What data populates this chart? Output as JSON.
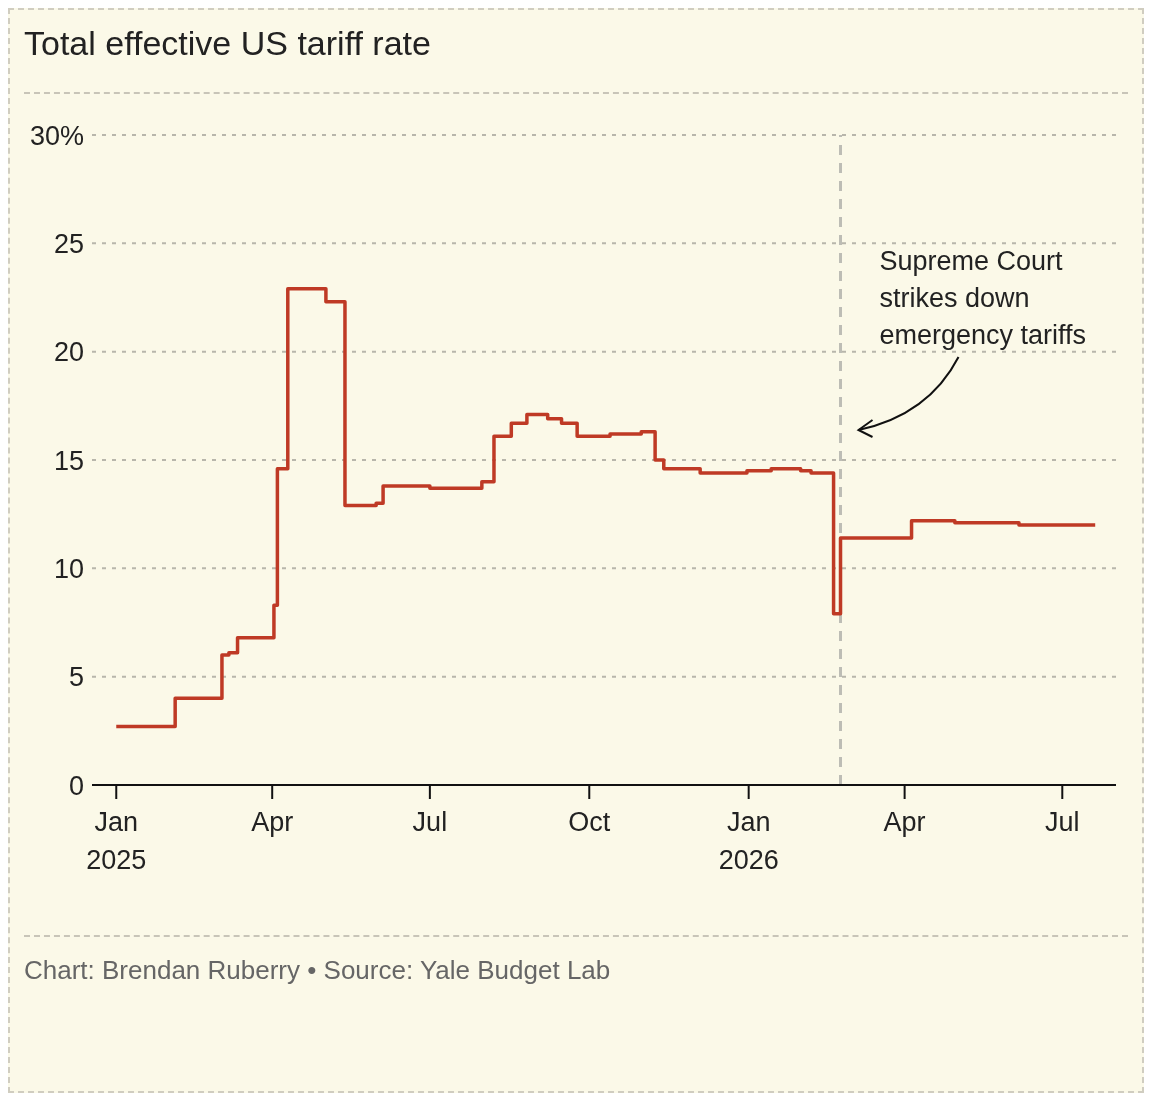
{
  "chart_data": {
    "type": "step",
    "title": "Total effective US tariff rate",
    "x": [
      "2025-01-01",
      "2025-02-04",
      "2025-03-03",
      "2025-03-07",
      "2025-03-12",
      "2025-04-02",
      "2025-04-04",
      "2025-04-10",
      "2025-05-02",
      "2025-05-13",
      "2025-05-31",
      "2025-06-04",
      "2025-07-01",
      "2025-07-31",
      "2025-08-07",
      "2025-08-17",
      "2025-08-26",
      "2025-09-07",
      "2025-09-15",
      "2025-09-24",
      "2025-10-13",
      "2025-10-31",
      "2025-11-08",
      "2025-11-13",
      "2025-12-04",
      "2025-12-31",
      "2026-01-14",
      "2026-01-31",
      "2026-02-06",
      "2026-02-19",
      "2026-02-23",
      "2026-04-05",
      "2026-04-30",
      "2026-06-06",
      "2026-07-20"
    ],
    "series": [
      {
        "color": "#bf3a25",
        "values": [
          2.7,
          4.0,
          6.0,
          6.1,
          6.8,
          8.3,
          14.6,
          22.9,
          22.3,
          12.9,
          13.0,
          13.8,
          13.7,
          14.0,
          16.1,
          16.7,
          17.1,
          16.9,
          16.7,
          16.1,
          16.2,
          16.3,
          15.0,
          14.6,
          14.4,
          14.5,
          14.6,
          14.5,
          14.4,
          7.9,
          11.4,
          12.2,
          12.1,
          12.0,
          12.0
        ]
      }
    ],
    "xlim": [
      "2024-12-18",
      "2026-08-01"
    ],
    "xticks": [
      {
        "value": "2025-01-01",
        "label": "Jan 2025"
      },
      {
        "value": "2025-04-01",
        "label": "Apr"
      },
      {
        "value": "2025-07-01",
        "label": "Jul"
      },
      {
        "value": "2025-10-01",
        "label": "Oct"
      },
      {
        "value": "2026-01-01",
        "label": "Jan 2026"
      },
      {
        "value": "2026-04-01",
        "label": "Apr"
      },
      {
        "value": "2026-07-01",
        "label": "Jul"
      }
    ],
    "ylim": [
      0,
      30
    ],
    "yticks": [
      0,
      5,
      10,
      15,
      20,
      25,
      {
        "value": 30,
        "label": "30%"
      }
    ],
    "grid": "y",
    "marker": "none",
    "ref_lines": [
      {
        "axis": "x",
        "value": "2026-02-23",
        "label": "Supreme Court strikes down emergency tariffs",
        "color": "#bdbdb5",
        "line_style": "dashed"
      }
    ],
    "annotations": [
      "Chart: Brendan Ruberry • Source: Yale Budget Lab"
    ]
  }
}
